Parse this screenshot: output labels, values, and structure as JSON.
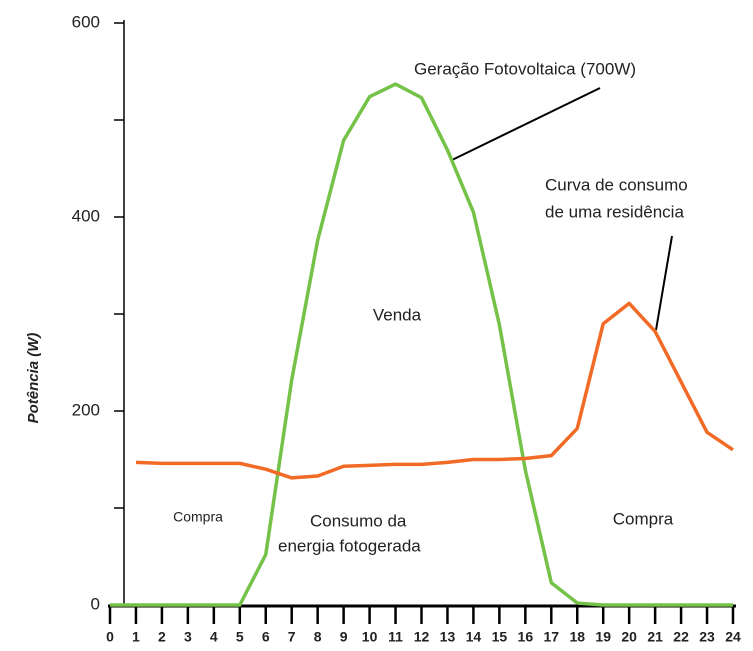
{
  "chart_data": {
    "type": "line",
    "x": [
      0,
      1,
      2,
      3,
      4,
      5,
      6,
      7,
      8,
      9,
      10,
      11,
      12,
      13,
      14,
      15,
      16,
      17,
      18,
      19,
      20,
      21,
      22,
      23,
      24
    ],
    "series": [
      {
        "color": "#74c247",
        "values": [
          0,
          0,
          0,
          0,
          0,
          0,
          52,
          232,
          376,
          479,
          524,
          537,
          523,
          469,
          405,
          289,
          139,
          23,
          2,
          0,
          0,
          0,
          0,
          0,
          0
        ]
      },
      {
        "color": "#f26b26",
        "values": [
          null,
          147,
          146,
          146,
          146,
          146,
          140,
          131,
          133,
          143,
          144,
          145,
          145,
          147,
          150,
          150,
          151,
          154,
          182,
          290,
          311,
          282,
          230,
          178,
          160
        ]
      }
    ],
    "ylabel": "Potência (W)",
    "xlim": [
      0,
      24
    ],
    "xticks": [
      0,
      1,
      2,
      3,
      4,
      5,
      6,
      7,
      8,
      9,
      10,
      11,
      12,
      13,
      14,
      15,
      16,
      17,
      18,
      19,
      20,
      21,
      22,
      23,
      24
    ],
    "ylim": [
      0,
      600
    ],
    "yticks": [
      0,
      200,
      400,
      600
    ],
    "minor_yticks": [
      100,
      300,
      500
    ],
    "annotations": [
      "Geração Fotovoltaica (700W)",
      "Curva de consumo",
      "de uma residência",
      "Venda",
      "Compra",
      "Consumo da",
      "energia fotogerada",
      "Compra"
    ]
  }
}
